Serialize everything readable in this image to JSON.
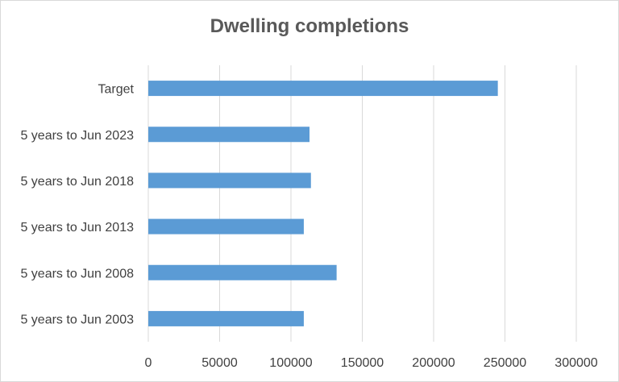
{
  "chart_data": {
    "type": "bar",
    "orientation": "horizontal",
    "title": "Dwelling completions",
    "xlabel": "",
    "ylabel": "",
    "categories": [
      "Target",
      "5 years to Jun 2023",
      "5 years to Jun 2018",
      "5 years to Jun 2013",
      "5 years to Jun 2008",
      "5 years to Jun 2003"
    ],
    "values": [
      245000,
      113000,
      114000,
      109000,
      132000,
      109000
    ],
    "xlim": [
      0,
      300000
    ],
    "xticks": [
      "0",
      "50000",
      "100000",
      "150000",
      "200000",
      "250000",
      "300000"
    ],
    "xtick_values": [
      0,
      50000,
      100000,
      150000,
      200000,
      250000,
      300000
    ],
    "grid": true,
    "legend": "none",
    "bar_color": "#5b9bd5",
    "grid_color": "#d9d9d9"
  }
}
